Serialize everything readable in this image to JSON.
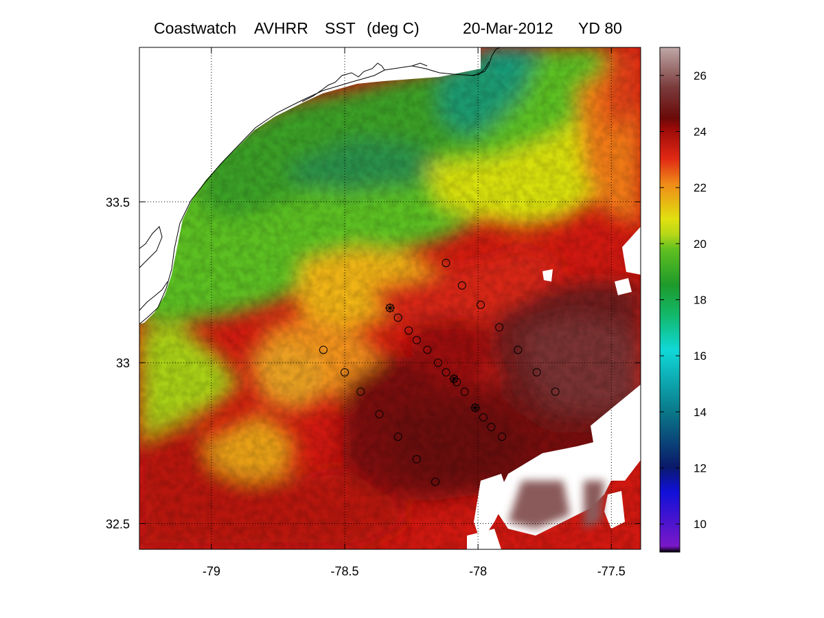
{
  "title": {
    "source": "Coastwatch",
    "sensor": "AVHRR",
    "variable": "SST",
    "units": "(deg C)",
    "date": "20-Mar-2012",
    "yearday": "YD 80"
  },
  "map": {
    "lon_range": [
      -79.27,
      -77.39
    ],
    "lat_range": [
      32.42,
      33.98
    ],
    "x_ticks": [
      -79,
      -78.5,
      -78,
      -77.5
    ],
    "x_tick_labels": [
      "-79",
      "-78.5",
      "-78",
      "-77.5"
    ],
    "y_ticks": [
      33.5,
      33,
      32.5
    ],
    "y_tick_labels": [
      "33.5",
      "33",
      "32.5"
    ],
    "grid": "dotted",
    "colorbar_range": [
      9,
      27
    ],
    "colorbar_ticks": [
      10,
      12,
      14,
      16,
      18,
      20,
      22,
      24,
      26
    ],
    "colorbar_tick_labels": [
      "10",
      "12",
      "14",
      "16",
      "18",
      "20",
      "22",
      "24",
      "26"
    ],
    "colormap": [
      "#000000",
      "#7a18c8",
      "#1010d8",
      "#0a1a6a",
      "#0a7a8a",
      "#10d8d8",
      "#12b86a",
      "#1e9a2a",
      "#60c020",
      "#d8e010",
      "#f08a18",
      "#d81810",
      "#6a0a08",
      "#7a3a3a",
      "#c0a8a8"
    ],
    "stations": [
      {
        "lon": -78.12,
        "lat": 33.31,
        "marker": "circle"
      },
      {
        "lon": -78.06,
        "lat": 33.24,
        "marker": "circle"
      },
      {
        "lon": -77.99,
        "lat": 33.18,
        "marker": "circle"
      },
      {
        "lon": -77.92,
        "lat": 33.11,
        "marker": "circle"
      },
      {
        "lon": -77.85,
        "lat": 33.04,
        "marker": "circle"
      },
      {
        "lon": -77.78,
        "lat": 32.97,
        "marker": "circle"
      },
      {
        "lon": -77.71,
        "lat": 32.91,
        "marker": "circle"
      },
      {
        "lon": -78.33,
        "lat": 33.17,
        "marker": "star"
      },
      {
        "lon": -78.3,
        "lat": 33.14,
        "marker": "circle"
      },
      {
        "lon": -78.26,
        "lat": 33.1,
        "marker": "circle"
      },
      {
        "lon": -78.23,
        "lat": 33.07,
        "marker": "circle"
      },
      {
        "lon": -78.19,
        "lat": 33.04,
        "marker": "circle"
      },
      {
        "lon": -78.15,
        "lat": 33.0,
        "marker": "circle"
      },
      {
        "lon": -78.12,
        "lat": 32.97,
        "marker": "circle"
      },
      {
        "lon": -78.09,
        "lat": 32.95,
        "marker": "star"
      },
      {
        "lon": -78.08,
        "lat": 32.94,
        "marker": "circle"
      },
      {
        "lon": -78.05,
        "lat": 32.91,
        "marker": "circle"
      },
      {
        "lon": -78.01,
        "lat": 32.86,
        "marker": "star"
      },
      {
        "lon": -77.98,
        "lat": 32.83,
        "marker": "circle"
      },
      {
        "lon": -77.95,
        "lat": 32.8,
        "marker": "circle"
      },
      {
        "lon": -77.91,
        "lat": 32.77,
        "marker": "circle"
      },
      {
        "lon": -78.58,
        "lat": 33.04,
        "marker": "circle"
      },
      {
        "lon": -78.5,
        "lat": 32.97,
        "marker": "circle"
      },
      {
        "lon": -78.44,
        "lat": 32.91,
        "marker": "circle"
      },
      {
        "lon": -78.37,
        "lat": 32.84,
        "marker": "circle"
      },
      {
        "lon": -78.3,
        "lat": 32.77,
        "marker": "circle"
      },
      {
        "lon": -78.23,
        "lat": 32.7,
        "marker": "circle"
      },
      {
        "lon": -78.16,
        "lat": 32.63,
        "marker": "circle"
      }
    ]
  }
}
